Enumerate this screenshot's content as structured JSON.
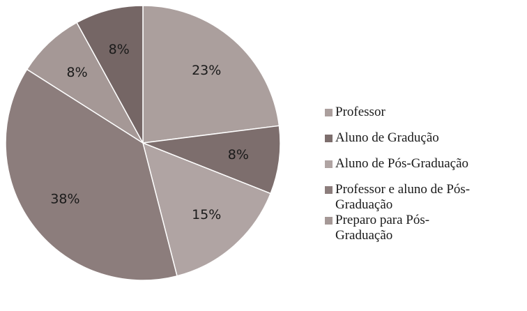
{
  "chart_data": {
    "type": "pie",
    "categories": [
      "Professor",
      "Aluno de Gradução",
      "Aluno de Pós-Graduação",
      "Professor e aluno de Pós-Graduação",
      "Preparo para Pós-Graduação",
      null
    ],
    "values": [
      23,
      8,
      15,
      38,
      8,
      8
    ],
    "value_labels": [
      "23%",
      "8%",
      "15%",
      "38%",
      "8%",
      "8%"
    ],
    "colors": [
      "#ab9f9d",
      "#7d6e6d",
      "#b0a4a3",
      "#8c7d7c",
      "#a59896",
      "#756665"
    ]
  }
}
